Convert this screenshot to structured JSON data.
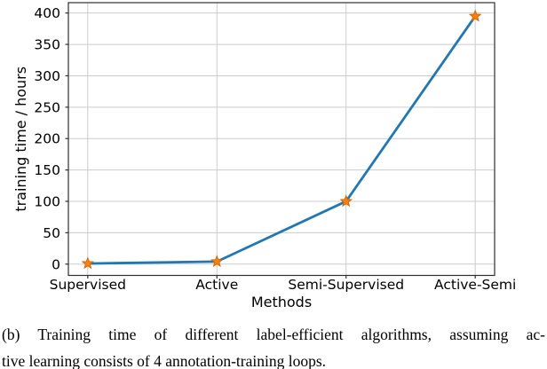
{
  "figure": {
    "caption_line1": "(b) Training time of different label-efficient algorithms, assuming ac-",
    "caption_line2": "tive learning consists of 4 annotation-training loops."
  },
  "chart_data": {
    "type": "line",
    "title": "",
    "xlabel": "Methods",
    "ylabel": "training time / hours",
    "categories": [
      "Supervised",
      "Active",
      "Semi-Supervised",
      "Active-Semi"
    ],
    "series": [
      {
        "name": "training time (hours)",
        "values": [
          1,
          4,
          100,
          395
        ]
      }
    ],
    "yticks": [
      0,
      50,
      100,
      150,
      200,
      250,
      300,
      350,
      400
    ],
    "ylim": [
      -18,
      416.5
    ],
    "xlim": [
      -0.15,
      3.15
    ],
    "grid": true,
    "legend_position": "none",
    "marker": "star",
    "colors": {
      "line": "#1f77b4",
      "marker_face": "#ff7f0e",
      "marker_edge": "#cf6a0a",
      "grid": "#cccccc",
      "axis": "#2f2f2f",
      "text": "#000000"
    }
  }
}
